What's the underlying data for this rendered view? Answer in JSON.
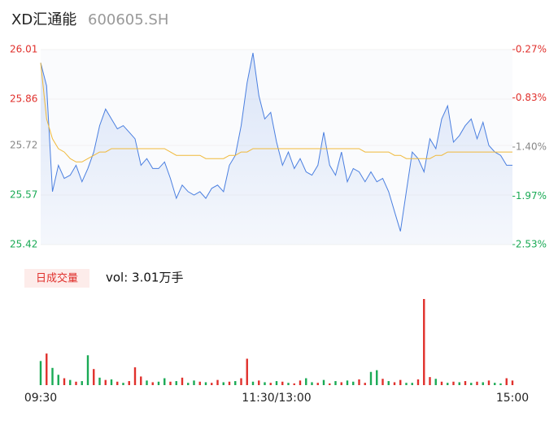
{
  "chart_data": {
    "type": "line",
    "title": "XD汇通能",
    "subtitle": "600605.SH",
    "categories": [
      "09:30",
      null,
      null,
      null,
      null,
      null,
      null,
      null,
      null,
      null,
      null,
      null,
      null,
      null,
      null,
      null,
      null,
      null,
      null,
      null,
      null,
      null,
      null,
      null,
      null,
      null,
      null,
      null,
      null,
      null,
      null,
      null,
      null,
      null,
      null,
      null,
      null,
      null,
      null,
      null,
      "11:30/13:00",
      null,
      null,
      null,
      null,
      null,
      null,
      null,
      null,
      null,
      null,
      null,
      null,
      null,
      null,
      null,
      null,
      null,
      null,
      null,
      null,
      null,
      null,
      null,
      null,
      null,
      null,
      null,
      null,
      null,
      null,
      null,
      null,
      null,
      null,
      null,
      null,
      null,
      null,
      null,
      "15:00"
    ],
    "series": [
      {
        "name": "price",
        "color": "#4a7fe0",
        "values": [
          25.97,
          25.9,
          25.58,
          25.66,
          25.62,
          25.63,
          25.66,
          25.61,
          25.65,
          25.7,
          25.78,
          25.83,
          25.8,
          25.77,
          25.78,
          25.76,
          25.74,
          25.66,
          25.68,
          25.65,
          25.65,
          25.67,
          25.62,
          25.56,
          25.6,
          25.58,
          25.57,
          25.58,
          25.56,
          25.59,
          25.6,
          25.58,
          25.66,
          25.69,
          25.78,
          25.91,
          26.0,
          25.87,
          25.8,
          25.82,
          25.73,
          25.66,
          25.7,
          25.65,
          25.68,
          25.64,
          25.63,
          25.66,
          25.76,
          25.66,
          25.63,
          25.7,
          25.61,
          25.65,
          25.64,
          25.61,
          25.64,
          25.61,
          25.62,
          25.58,
          25.52,
          25.46,
          25.58,
          25.7,
          25.68,
          25.64,
          25.74,
          25.71,
          25.8,
          25.84,
          25.73,
          25.75,
          25.78,
          25.8,
          25.74,
          25.79,
          25.72,
          25.7,
          25.69,
          25.66,
          25.66
        ]
      },
      {
        "name": "average",
        "color": "#f0b93a",
        "values": [
          25.97,
          25.8,
          25.74,
          25.71,
          25.7,
          25.68,
          25.67,
          25.67,
          25.68,
          25.69,
          25.7,
          25.7,
          25.71,
          25.71,
          25.71,
          25.71,
          25.71,
          25.71,
          25.71,
          25.71,
          25.71,
          25.71,
          25.7,
          25.69,
          25.69,
          25.69,
          25.69,
          25.69,
          25.68,
          25.68,
          25.68,
          25.68,
          25.69,
          25.69,
          25.7,
          25.7,
          25.71,
          25.71,
          25.71,
          25.71,
          25.71,
          25.71,
          25.71,
          25.71,
          25.71,
          25.71,
          25.71,
          25.71,
          25.71,
          25.71,
          25.71,
          25.71,
          25.71,
          25.71,
          25.71,
          25.7,
          25.7,
          25.7,
          25.7,
          25.7,
          25.69,
          25.69,
          25.68,
          25.68,
          25.68,
          25.68,
          25.68,
          25.69,
          25.69,
          25.7,
          25.7,
          25.7,
          25.7,
          25.7,
          25.7,
          25.7,
          25.7,
          25.7,
          25.7,
          25.7,
          25.7
        ]
      }
    ],
    "ylim": [
      25.42,
      26.01
    ],
    "yticks": [
      26.01,
      25.86,
      25.72,
      25.57,
      25.42
    ],
    "ytick_colors": [
      "#e0302c",
      "#e0302c",
      "#888888",
      "#1aaa55",
      "#1aaa55"
    ],
    "y2lim": [
      -2.53,
      -0.27
    ],
    "y2ticks": [
      {
        "value": -0.27,
        "label": "-0.27%"
      },
      {
        "value": -0.83,
        "label": "-0.83%"
      },
      {
        "value": -1.4,
        "label": "-1.40%"
      },
      {
        "value": -1.97,
        "label": "-1.97%"
      },
      {
        "value": -2.53,
        "label": "-2.53%"
      }
    ],
    "volume": {
      "label": "日成交量",
      "summary": "vol: 3.01万手",
      "ylim": [
        0,
        1500
      ],
      "up_color": "#e0302c",
      "down_color": "#1aaa55",
      "values": [
        420,
        550,
        300,
        180,
        120,
        90,
        60,
        70,
        520,
        280,
        130,
        90,
        100,
        60,
        40,
        70,
        310,
        150,
        80,
        50,
        60,
        120,
        60,
        70,
        130,
        40,
        80,
        60,
        50,
        40,
        90,
        50,
        60,
        70,
        120,
        460,
        60,
        80,
        50,
        40,
        70,
        60,
        40,
        30,
        80,
        120,
        50,
        40,
        90,
        30,
        70,
        50,
        80,
        60,
        100,
        40,
        230,
        260,
        110,
        70,
        50,
        90,
        40,
        40,
        100,
        1500,
        140,
        110,
        60,
        40,
        60,
        50,
        70,
        40,
        60,
        50,
        80,
        40,
        30,
        120,
        80
      ],
      "directions": [
        "down",
        "up",
        "down",
        "down",
        "up",
        "down",
        "up",
        "down",
        "down",
        "up",
        "down",
        "up",
        "down",
        "up",
        "down",
        "up",
        "up",
        "up",
        "down",
        "up",
        "down",
        "down",
        "up",
        "down",
        "up",
        "down",
        "down",
        "up",
        "down",
        "up",
        "up",
        "down",
        "up",
        "down",
        "up",
        "up",
        "down",
        "up",
        "down",
        "up",
        "down",
        "up",
        "down",
        "up",
        "up",
        "down",
        "down",
        "up",
        "down",
        "up",
        "down",
        "up",
        "down",
        "down",
        "up",
        "up",
        "down",
        "down",
        "up",
        "down",
        "up",
        "up",
        "down",
        "down",
        "up",
        "up",
        "up",
        "down",
        "up",
        "down",
        "up",
        "down",
        "up",
        "down",
        "up",
        "down",
        "up",
        "down",
        "down",
        "up",
        "up"
      ]
    }
  }
}
